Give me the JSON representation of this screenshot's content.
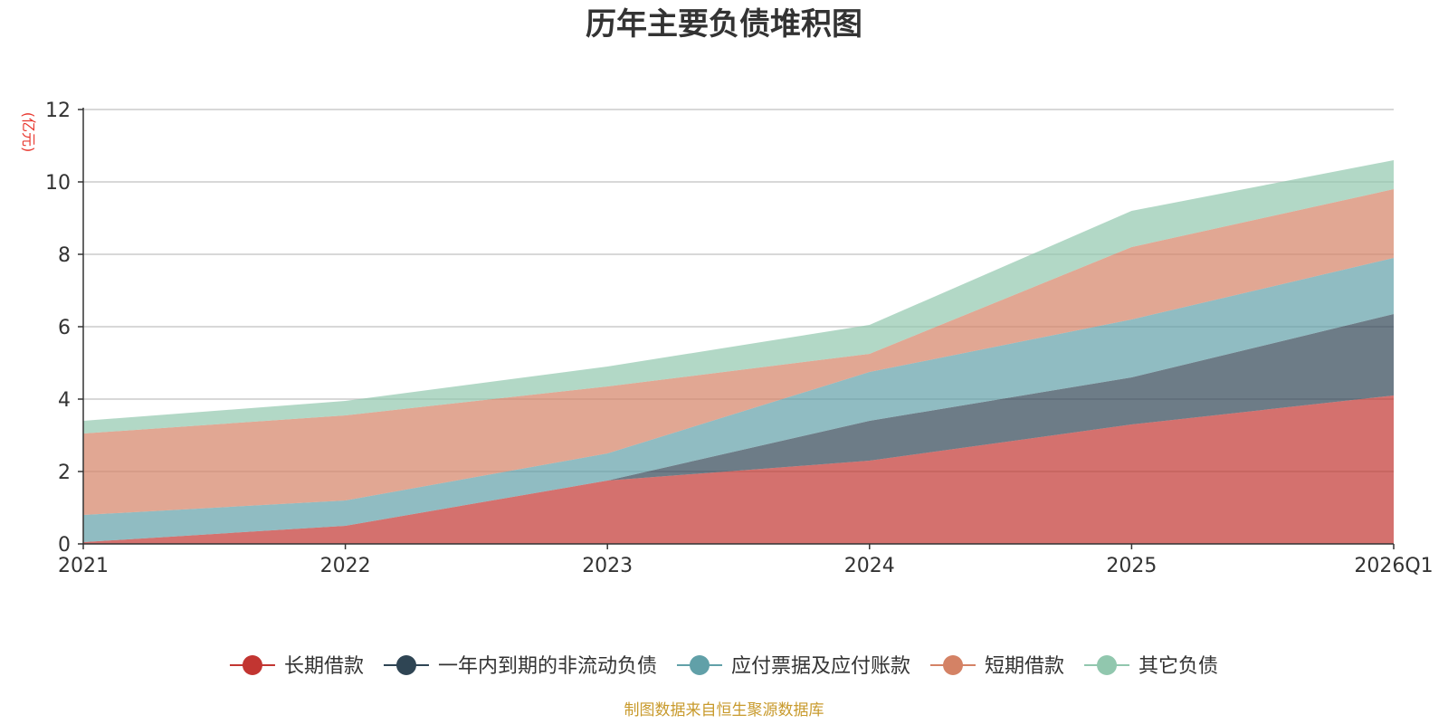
{
  "chart_data": {
    "type": "area",
    "stacked": true,
    "title": "历年主要负债堆积图",
    "ylabel": "(亿元)",
    "xlabel": "",
    "categories": [
      "2021",
      "2022",
      "2023",
      "2024",
      "2025",
      "2026Q1"
    ],
    "ylim": [
      0,
      12
    ],
    "yticks": [
      0,
      2,
      4,
      6,
      8,
      10,
      12
    ],
    "grid": true,
    "legend_position": "bottom",
    "series": [
      {
        "name": "长期借款",
        "values": [
          0.05,
          0.5,
          1.75,
          2.3,
          3.3,
          4.1
        ],
        "color": "#c23531"
      },
      {
        "name": "一年内到期的非流动负债",
        "values": [
          0.0,
          0.0,
          0.0,
          1.1,
          1.3,
          2.25
        ],
        "color": "#2f4554"
      },
      {
        "name": "应付票据及应付账款",
        "values": [
          0.75,
          0.7,
          0.75,
          1.35,
          1.6,
          1.55
        ],
        "color": "#61a0a8"
      },
      {
        "name": "短期借款",
        "values": [
          2.25,
          2.35,
          1.85,
          0.5,
          2.0,
          1.9
        ],
        "color": "#d48265"
      },
      {
        "name": "其它负债",
        "values": [
          0.35,
          0.4,
          0.55,
          0.8,
          1.0,
          0.8
        ],
        "color": "#91c7ae"
      }
    ]
  },
  "footer": {
    "source": "制图数据来自恒生聚源数据库"
  }
}
